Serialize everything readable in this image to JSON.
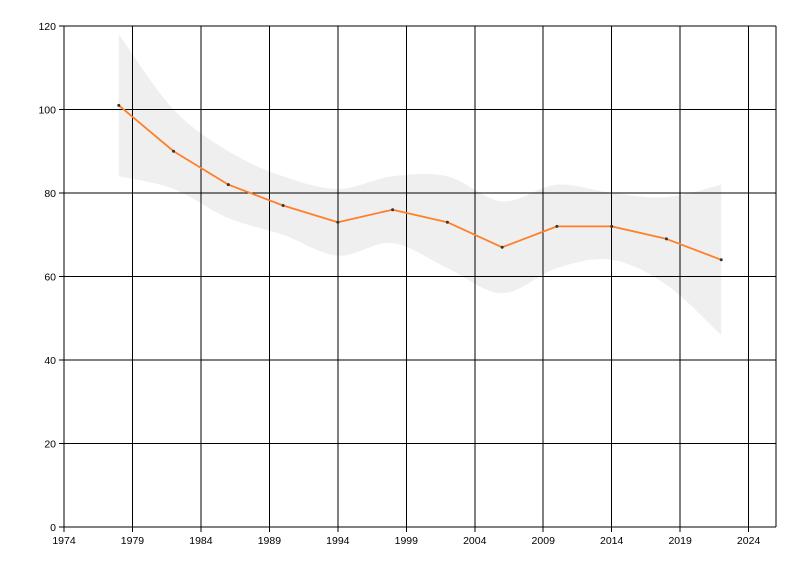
{
  "chart_data": {
    "type": "line",
    "title": "",
    "xlabel": "",
    "ylabel": "",
    "xlim": [
      1974,
      2026
    ],
    "ylim": [
      0,
      120
    ],
    "x_ticks": [
      1974,
      1979,
      1984,
      1989,
      1994,
      1999,
      2004,
      2009,
      2014,
      2019,
      2024
    ],
    "y_ticks": [
      0,
      20,
      40,
      60,
      80,
      100,
      120
    ],
    "grid": true,
    "legend": "none",
    "series": [
      {
        "color": "#ff7f2a",
        "x": [
          1978,
          1982,
          1986,
          1990,
          1994,
          1998,
          2002,
          2006,
          2010,
          2014,
          2018,
          2022
        ],
        "y": [
          101,
          90,
          82,
          77,
          73,
          76,
          73,
          67,
          72,
          72,
          69,
          64
        ]
      }
    ],
    "band": {
      "color": "#efefef",
      "x": [
        1978,
        1982,
        1986,
        1990,
        1994,
        1998,
        2002,
        2006,
        2010,
        2014,
        2018,
        2022
      ],
      "upper": [
        118,
        100,
        90,
        84,
        81,
        84,
        84,
        78,
        82,
        80,
        79,
        82
      ],
      "lower": [
        84,
        81,
        74,
        70,
        65,
        68,
        62,
        56,
        62,
        64,
        58,
        46
      ]
    }
  }
}
